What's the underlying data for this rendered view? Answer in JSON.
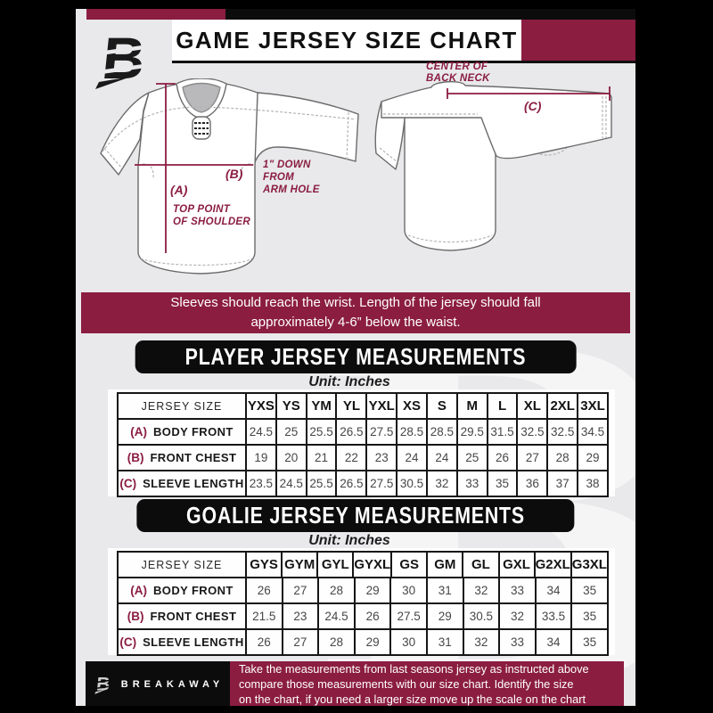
{
  "colors": {
    "maroon": "#8b1d41",
    "black": "#0c0c0c",
    "page_gray": "#e9e9eb"
  },
  "header": {
    "title": "GAME JERSEY SIZE CHART",
    "brand_letter": "B"
  },
  "diagram": {
    "front": {
      "a_label": "(A)",
      "a_note1": "TOP POINT",
      "a_note2": "OF SHOULDER",
      "b_label": "(B)",
      "b_note1": "1\" DOWN",
      "b_note2": "FROM",
      "b_note3": "ARM HOLE"
    },
    "back": {
      "c_label": "(C)",
      "c_note1": "CENTER OF",
      "c_note2": "BACK NECK"
    }
  },
  "notice": {
    "line1": "Sleeves should reach the wrist. Length of the jersey should fall",
    "line2": "approximately 4-6” below the waist."
  },
  "player_table": {
    "title": "PLAYER JERSEY MEASUREMENTS",
    "unit": "Unit: Inches",
    "corner": "JERSEY SIZE",
    "sizes": [
      "YXS",
      "YS",
      "YM",
      "YL",
      "YXL",
      "XS",
      "S",
      "M",
      "L",
      "XL",
      "2XL",
      "3XL"
    ],
    "rows": [
      {
        "key": "(A)",
        "label": "BODY FRONT",
        "values": [
          "24.5",
          "25",
          "25.5",
          "26.5",
          "27.5",
          "28.5",
          "28.5",
          "29.5",
          "31.5",
          "32.5",
          "32.5",
          "34.5"
        ]
      },
      {
        "key": "(B)",
        "label": "FRONT CHEST",
        "values": [
          "19",
          "20",
          "21",
          "22",
          "23",
          "24",
          "24",
          "25",
          "26",
          "27",
          "28",
          "29"
        ]
      },
      {
        "key": "(C)",
        "label": "SLEEVE LENGTH",
        "values": [
          "23.5",
          "24.5",
          "25.5",
          "26.5",
          "27.5",
          "30.5",
          "32",
          "33",
          "35",
          "36",
          "37",
          "38"
        ]
      }
    ]
  },
  "goalie_table": {
    "title": "GOALIE JERSEY MEASUREMENTS",
    "unit": "Unit: Inches",
    "corner": "JERSEY SIZE",
    "sizes": [
      "GYS",
      "GYM",
      "GYL",
      "GYXL",
      "GS",
      "GM",
      "GL",
      "GXL",
      "G2XL",
      "G3XL"
    ],
    "rows": [
      {
        "key": "(A)",
        "label": "BODY FRONT",
        "values": [
          "26",
          "27",
          "28",
          "29",
          "30",
          "31",
          "32",
          "33",
          "34",
          "35"
        ]
      },
      {
        "key": "(B)",
        "label": "FRONT CHEST",
        "values": [
          "21.5",
          "23",
          "24.5",
          "26",
          "27.5",
          "29",
          "30.5",
          "32",
          "33.5",
          "35"
        ]
      },
      {
        "key": "(C)",
        "label": "SLEEVE LENGTH",
        "values": [
          "26",
          "27",
          "28",
          "29",
          "30",
          "31",
          "32",
          "33",
          "34",
          "35"
        ]
      }
    ]
  },
  "footer": {
    "brand": "BREAKAWAY",
    "brand_letter": "B",
    "line1": "Take the measurements from last seasons jersey as instructed above",
    "line2": "compare those measurements  with our size chart. Identify the size",
    "line3": "on the chart, if you need a larger size move up the scale on the chart"
  },
  "watermark_letter": "B"
}
